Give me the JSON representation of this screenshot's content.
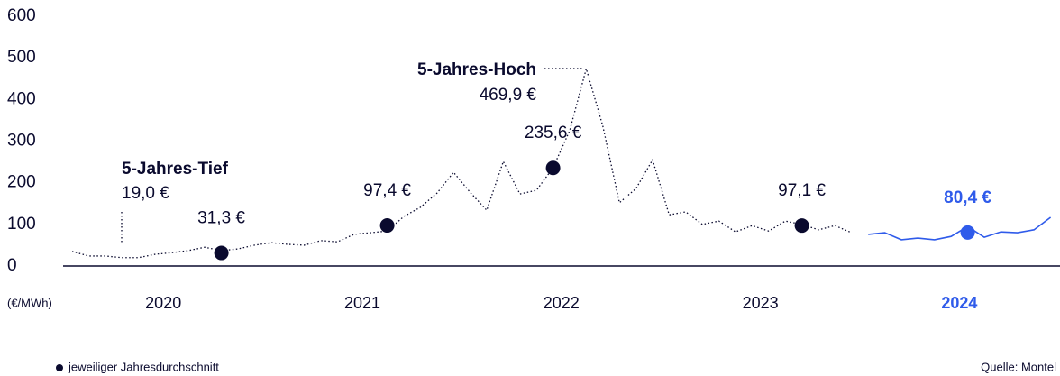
{
  "chart_data": {
    "type": "line",
    "y_label": "(€/MWh)",
    "source": "Quelle: Montel",
    "ylim": [
      0,
      600
    ],
    "yticks": [
      0,
      100,
      200,
      300,
      400,
      500,
      600
    ],
    "categories": [
      null,
      null,
      null,
      null,
      null,
      null,
      "2020",
      null,
      null,
      null,
      null,
      null,
      null,
      null,
      null,
      null,
      null,
      null,
      "2021",
      null,
      null,
      null,
      null,
      null,
      null,
      null,
      null,
      null,
      null,
      null,
      "2022",
      null,
      null,
      null,
      null,
      null,
      null,
      null,
      null,
      null,
      null,
      null,
      "2023",
      null,
      null,
      null,
      null,
      null,
      null,
      null,
      null,
      null,
      null,
      null,
      "2024",
      null,
      null,
      null,
      null,
      null
    ],
    "category_colors": [
      null,
      null,
      null,
      null,
      null,
      null,
      "#0a0a2e",
      null,
      null,
      null,
      null,
      null,
      null,
      null,
      null,
      null,
      null,
      null,
      "#0a0a2e",
      null,
      null,
      null,
      null,
      null,
      null,
      null,
      null,
      null,
      null,
      null,
      "#0a0a2e",
      null,
      null,
      null,
      null,
      null,
      null,
      null,
      null,
      null,
      null,
      null,
      "#0a0a2e",
      null,
      null,
      null,
      null,
      null,
      null,
      null,
      null,
      null,
      null,
      null,
      "#2f5bea",
      null,
      null,
      null,
      null,
      null
    ],
    "series": [
      {
        "color": "#0a0a2e",
        "style": "dotted",
        "values": [
          35,
          24,
          24,
          20,
          20,
          28,
          32,
          37,
          45,
          37,
          41,
          50,
          56,
          52,
          50,
          61,
          58,
          76,
          80,
          84,
          119,
          141,
          175,
          225,
          177,
          134,
          251,
          173,
          182,
          236,
          325,
          474,
          336,
          152,
          186,
          255,
          123,
          130,
          100,
          108,
          82,
          97,
          84,
          108,
          100,
          87,
          97,
          80,
          null,
          null,
          null,
          null,
          null,
          null,
          null,
          null,
          null,
          null,
          null,
          null
        ]
      },
      {
        "color": "#2f5bea",
        "style": "solid",
        "values": [
          null,
          null,
          null,
          null,
          null,
          null,
          null,
          null,
          null,
          null,
          null,
          null,
          null,
          null,
          null,
          null,
          null,
          null,
          null,
          null,
          null,
          null,
          null,
          null,
          null,
          null,
          null,
          null,
          null,
          null,
          null,
          null,
          null,
          null,
          null,
          null,
          null,
          null,
          null,
          null,
          null,
          null,
          null,
          null,
          null,
          null,
          null,
          null,
          76,
          80,
          63,
          67,
          63,
          71,
          95,
          69,
          82,
          80,
          87,
          117
        ]
      },
      {
        "name": "jeweiliger Jahresdurchschnitt",
        "type": "scatter",
        "colors": [
          null,
          null,
          null,
          null,
          null,
          null,
          null,
          null,
          null,
          "#0a0a2e",
          null,
          null,
          null,
          null,
          null,
          null,
          null,
          null,
          null,
          "#0a0a2e",
          null,
          null,
          null,
          null,
          null,
          null,
          null,
          null,
          null,
          "#0a0a2e",
          null,
          null,
          null,
          null,
          null,
          null,
          null,
          null,
          null,
          null,
          null,
          null,
          null,
          null,
          "#0a0a2e",
          null,
          null,
          null,
          null,
          null,
          null,
          null,
          null,
          null,
          "#2f5bea",
          null,
          null,
          null,
          null,
          null
        ],
        "values": [
          null,
          null,
          null,
          null,
          null,
          null,
          null,
          null,
          null,
          31.3,
          null,
          null,
          null,
          null,
          null,
          null,
          null,
          null,
          null,
          97.4,
          null,
          null,
          null,
          null,
          null,
          null,
          null,
          null,
          null,
          235.6,
          null,
          null,
          null,
          null,
          null,
          null,
          null,
          null,
          null,
          null,
          null,
          null,
          null,
          null,
          97.1,
          null,
          null,
          null,
          null,
          null,
          null,
          null,
          null,
          null,
          80.4,
          null,
          null,
          null,
          null,
          null
        ],
        "value_labels": [
          null,
          null,
          null,
          null,
          null,
          null,
          null,
          null,
          null,
          "31,3 €",
          null,
          null,
          null,
          null,
          null,
          null,
          null,
          null,
          null,
          "97,4 €",
          null,
          null,
          null,
          null,
          null,
          null,
          null,
          null,
          null,
          "235,6 €",
          null,
          null,
          null,
          null,
          null,
          null,
          null,
          null,
          null,
          null,
          null,
          null,
          null,
          null,
          "97,1 €",
          null,
          null,
          null,
          null,
          null,
          null,
          null,
          null,
          null,
          "80,4 €",
          null,
          null,
          null,
          null,
          null
        ]
      }
    ],
    "annotations": [
      {
        "label": "5-Jahres-Tief",
        "value": 19.0,
        "value_label": "19,0 €"
      },
      {
        "label": "5-Jahres-Hoch",
        "value": 469.9,
        "value_label": "469,9 €"
      }
    ]
  }
}
